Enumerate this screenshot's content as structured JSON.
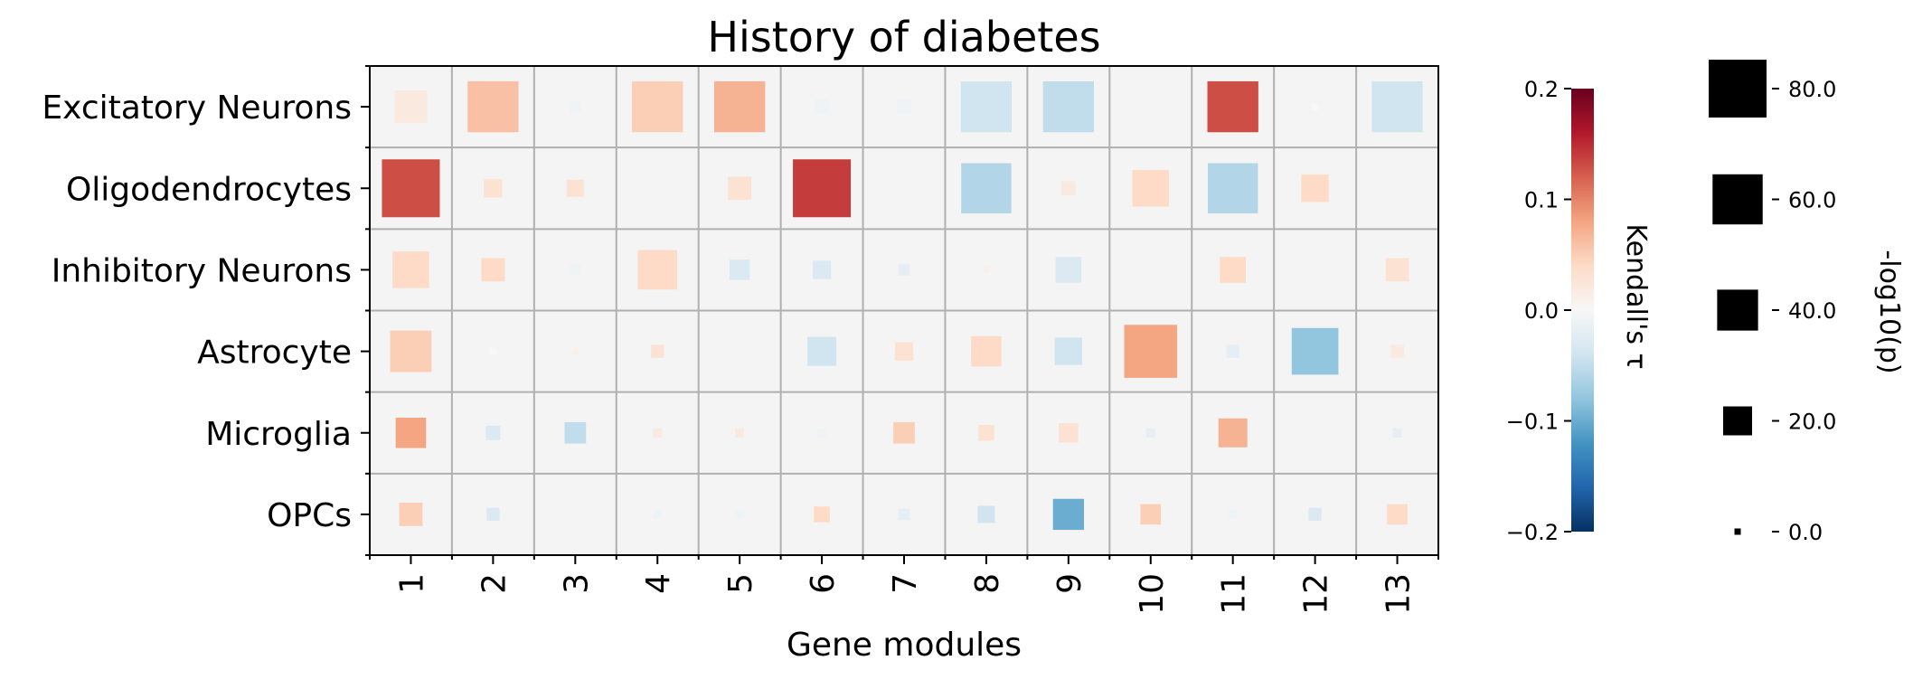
{
  "chart_data": {
    "type": "heatmap",
    "title": "History of diabetes",
    "xlabel": "Gene modules",
    "ylabel": "",
    "rows": [
      "Excitatory Neurons",
      "Oligodendrocytes",
      "Inhibitory Neurons",
      "Astrocyte",
      "Microglia",
      "OPCs"
    ],
    "columns": [
      "1",
      "2",
      "3",
      "4",
      "5",
      "6",
      "7",
      "8",
      "9",
      "10",
      "11",
      "12",
      "13"
    ],
    "color_metric": "Kendall's τ",
    "size_metric": "-log10(p)",
    "color_range": [
      -0.2,
      0.2
    ],
    "colormap": "RdBu_r",
    "colorbar_ticks": [
      "0.2",
      "0.1",
      "0.0",
      "−0.1",
      "−0.2"
    ],
    "size_legend": [
      "80.0",
      "60.0",
      "40.0",
      "20.0",
      "0.0"
    ],
    "size_legend_values": [
      80,
      60,
      40,
      20,
      0
    ],
    "grid": true,
    "tau": [
      [
        0.02,
        0.06,
        -0.01,
        0.05,
        0.07,
        -0.01,
        -0.01,
        -0.04,
        -0.05,
        0.0,
        0.13,
        0.0,
        -0.04
      ],
      [
        0.13,
        0.03,
        0.03,
        0.0,
        0.03,
        0.14,
        0.0,
        -0.06,
        0.02,
        0.04,
        -0.06,
        0.04,
        0.0
      ],
      [
        0.04,
        0.04,
        -0.01,
        0.04,
        -0.03,
        -0.03,
        -0.02,
        0.01,
        -0.03,
        0.0,
        0.04,
        0.0,
        0.03
      ],
      [
        0.05,
        0.0,
        0.01,
        0.03,
        0.0,
        -0.04,
        0.03,
        0.04,
        -0.04,
        0.08,
        -0.02,
        -0.08,
        0.02
      ],
      [
        0.08,
        -0.03,
        -0.05,
        0.02,
        0.02,
        -0.01,
        0.05,
        0.03,
        0.03,
        -0.02,
        0.07,
        0.0,
        -0.02
      ],
      [
        0.05,
        -0.03,
        0.0,
        -0.01,
        -0.01,
        0.04,
        -0.02,
        -0.04,
        -0.1,
        0.05,
        -0.01,
        -0.03,
        0.04
      ]
    ],
    "neglog10p": [
      [
        25,
        62,
        3,
        62,
        62,
        5,
        5,
        62,
        62,
        0,
        62,
        1,
        62
      ],
      [
        80,
        8,
        7,
        0,
        13,
        80,
        0,
        60,
        5,
        32,
        60,
        18,
        0
      ],
      [
        32,
        13,
        3,
        37,
        10,
        8,
        3,
        1,
        16,
        0,
        16,
        0,
        13
      ],
      [
        41,
        1,
        1,
        4,
        0,
        20,
        8,
        22,
        18,
        67,
        4,
        52,
        4
      ],
      [
        22,
        5,
        11,
        2,
        2,
        2,
        11,
        6,
        9,
        2,
        20,
        0,
        2
      ],
      [
        13,
        4,
        0,
        2,
        2,
        6,
        3,
        7,
        23,
        10,
        2,
        4,
        10
      ]
    ]
  }
}
